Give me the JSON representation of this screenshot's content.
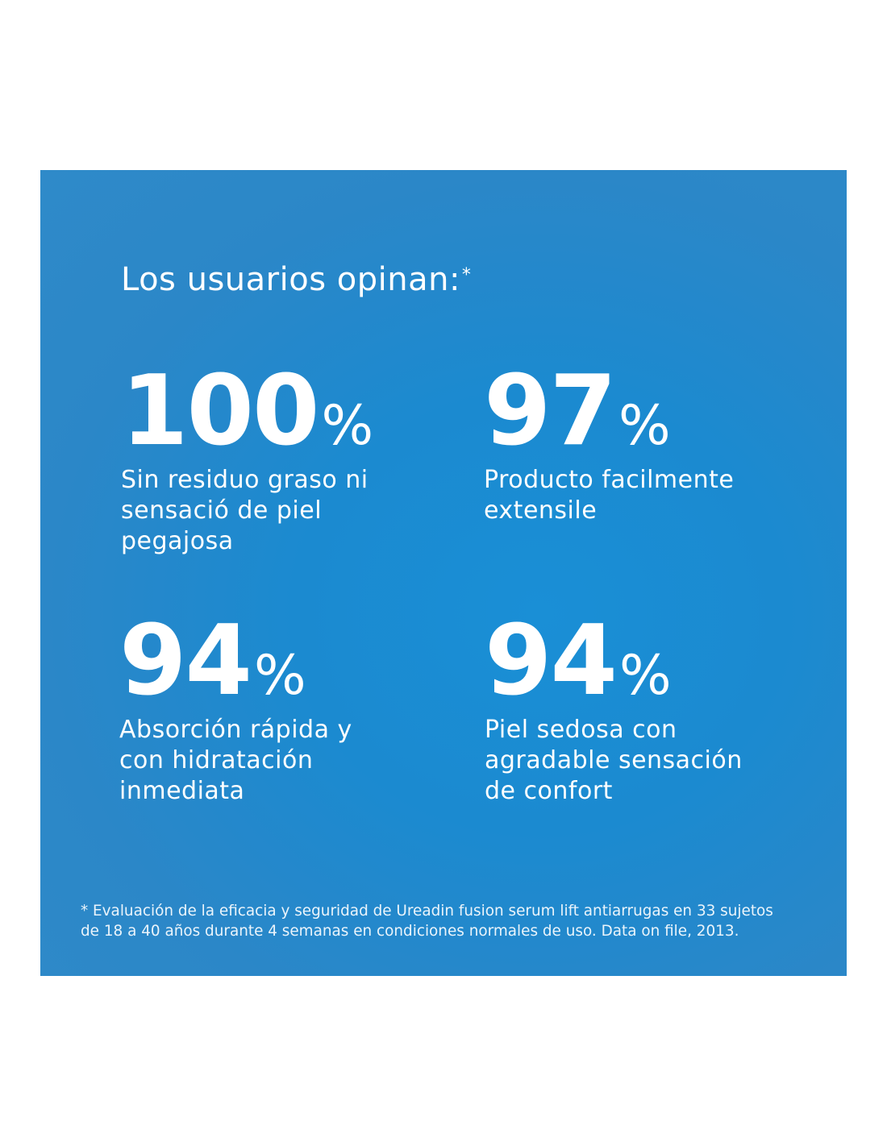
{
  "heading": {
    "text": "Los usuarios opinan:",
    "asterisk": "*"
  },
  "stats": [
    {
      "number": "100",
      "percent": "%",
      "label_lines": [
        "Sin residuo graso ni",
        "sensació de piel",
        "pegajosa"
      ]
    },
    {
      "number": "97",
      "percent": "%",
      "label_lines": [
        "Producto facilmente",
        "extensile"
      ]
    },
    {
      "number": "94",
      "percent": "%",
      "label_lines": [
        "Absorción rápida y",
        "con hidratación",
        "inmediata"
      ]
    },
    {
      "number": "94",
      "percent": "%",
      "label_lines": [
        "Piel sedosa con",
        "agradable sensación",
        "de confort"
      ]
    }
  ],
  "footnote": {
    "lines": [
      "* Evaluación de la eficacia y seguridad de Ureadin fusion serum lift antiarrugas en 33 sujetos",
      "de 18 a 40 años durante 4 semanas en condiciones normales de uso. Data on file, 2013."
    ]
  },
  "colors": {
    "panel_background": "#1b8ad0",
    "text": "#ffffff",
    "page_background": "#ffffff"
  }
}
